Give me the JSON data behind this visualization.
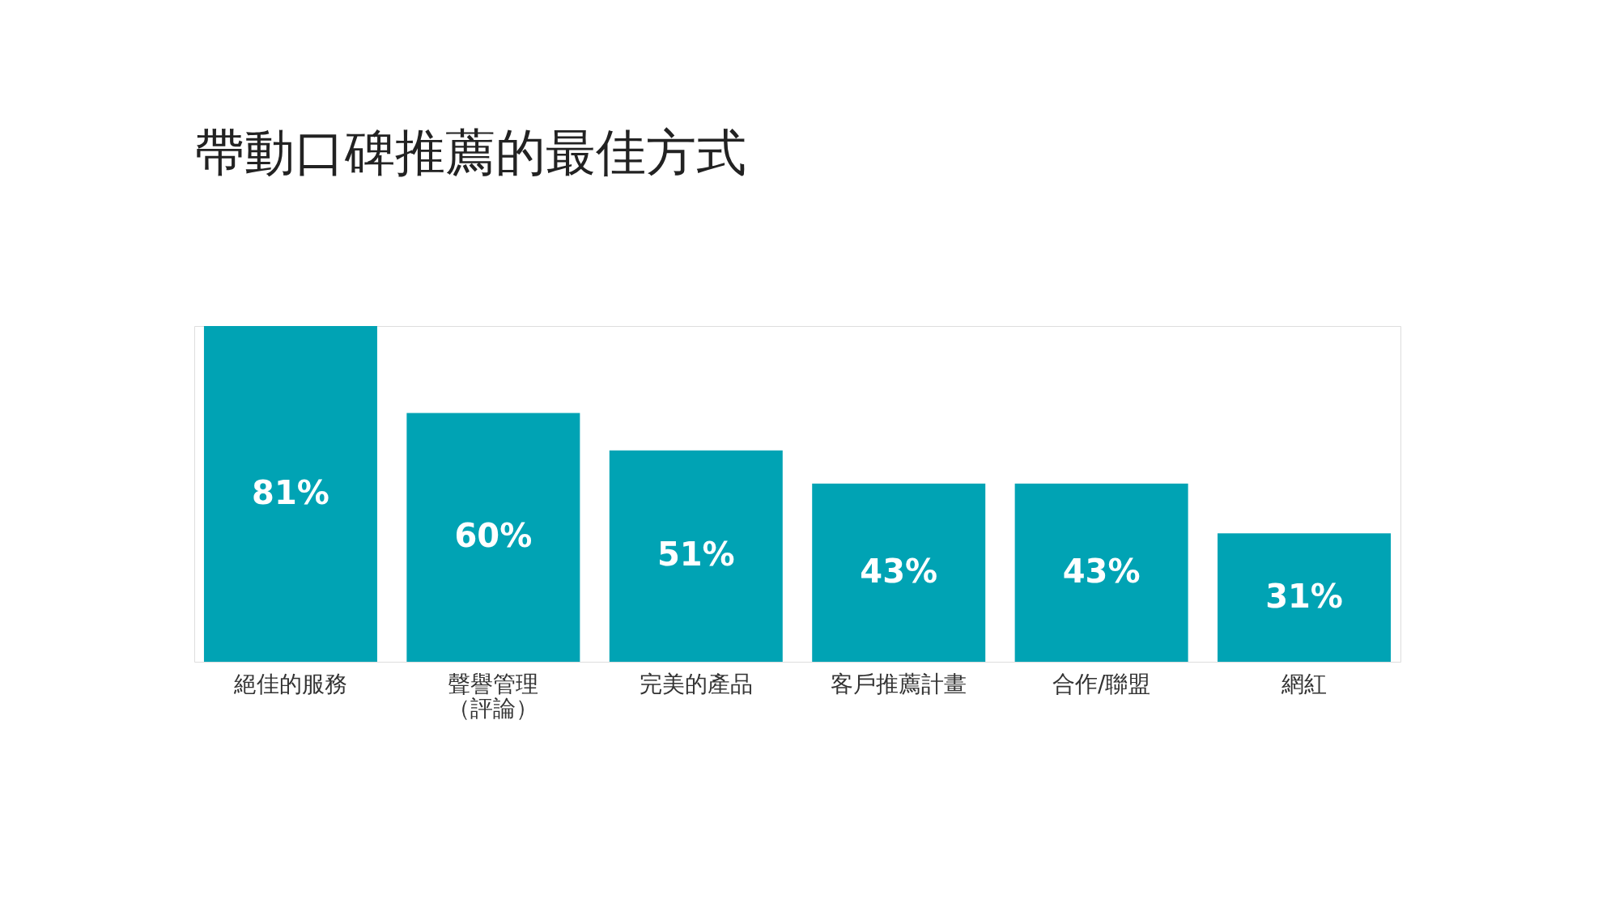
{
  "chart_data": {
    "type": "bar",
    "title": "帶動口碑推薦的最佳方式",
    "categories": [
      "絕佳的服務",
      "聲譽管理（評論）",
      "完美的產品",
      "客戶推薦計畫",
      "合作/聯盟",
      "網紅"
    ],
    "values": [
      81,
      60,
      51,
      43,
      43,
      31
    ],
    "value_labels": [
      "81%",
      "60%",
      "51%",
      "43%",
      "43%",
      "31%"
    ],
    "color": "#00a3b4",
    "grid": false
  }
}
